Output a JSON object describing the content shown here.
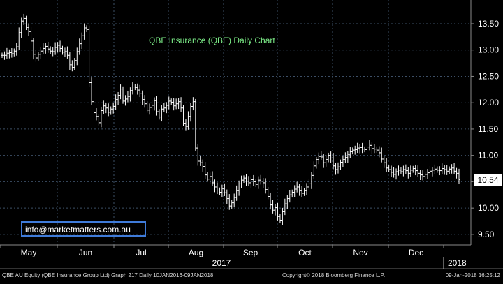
{
  "chart_data": {
    "type": "ohlc",
    "title": "QBE Insurance (QBE) Daily Chart",
    "xlabel": "",
    "ylabel": "",
    "ylim": [
      9.3,
      13.95
    ],
    "y_ticks": [
      "9.50",
      "10.00",
      "10.50",
      "11.00",
      "11.50",
      "12.00",
      "12.50",
      "13.00",
      "13.50"
    ],
    "month_labels": [
      "May",
      "Jun",
      "Jul",
      "Aug",
      "Sep",
      "Oct",
      "Nov",
      "Dec"
    ],
    "year_labels": [
      "2017",
      "2018"
    ],
    "last_price": "10.54",
    "series": [
      {
        "values": [
          12.9,
          12.9,
          12.94,
          12.95,
          12.93,
          12.98,
          13.06,
          13.33,
          13.55,
          13.6,
          13.43,
          13.35,
          13.17,
          12.92,
          12.85,
          12.92,
          12.98,
          13.03,
          13.07,
          13.02,
          12.98,
          12.97,
          13.05,
          13.09,
          13.03,
          12.96,
          12.97,
          12.9,
          12.72,
          12.67,
          12.8,
          12.97,
          13.12,
          13.27,
          13.42,
          13.39,
          12.38,
          12.02,
          11.81,
          11.74,
          11.62,
          11.85,
          11.94,
          11.9,
          11.82,
          11.88,
          11.93,
          12.06,
          12.14,
          12.26,
          12.03,
          12.07,
          12.12,
          12.23,
          12.3,
          12.29,
          12.24,
          12.17,
          12.06,
          11.98,
          11.86,
          11.91,
          11.95,
          12.04,
          11.83,
          11.73,
          11.88,
          11.9,
          11.95,
          12.03,
          12.01,
          11.94,
          11.98,
          12.02,
          11.9,
          11.61,
          11.55,
          11.74,
          11.93,
          12.02,
          11.14,
          10.89,
          10.86,
          10.79,
          10.63,
          10.55,
          10.6,
          10.48,
          10.4,
          10.34,
          10.3,
          10.37,
          10.29,
          10.18,
          10.04,
          10.1,
          10.2,
          10.33,
          10.46,
          10.53,
          10.57,
          10.51,
          10.48,
          10.54,
          10.5,
          10.45,
          10.53,
          10.51,
          10.48,
          10.35,
          10.22,
          10.06,
          9.96,
          10.01,
          9.84,
          9.77,
          9.93,
          10.08,
          10.18,
          10.25,
          10.3,
          10.36,
          10.4,
          10.33,
          10.28,
          10.33,
          10.4,
          10.46,
          10.62,
          10.8,
          10.92,
          10.98,
          10.97,
          10.86,
          10.92,
          11.0,
          10.95,
          10.8,
          10.73,
          10.78,
          10.87,
          10.92,
          10.96,
          11.02,
          11.07,
          11.1,
          11.11,
          11.14,
          11.15,
          11.12,
          11.11,
          11.16,
          11.19,
          11.13,
          11.12,
          11.1,
          11.05,
          10.93,
          10.86,
          10.76,
          10.73,
          10.68,
          10.64,
          10.69,
          10.72,
          10.69,
          10.73,
          10.71,
          10.66,
          10.72,
          10.75,
          10.71,
          10.66,
          10.63,
          10.6,
          10.64,
          10.67,
          10.7,
          10.72,
          10.74,
          10.72,
          10.71,
          10.75,
          10.73,
          10.7,
          10.74,
          10.76,
          10.7,
          10.66,
          10.54
        ]
      }
    ],
    "grid": true,
    "legend": "none"
  },
  "annotations": {
    "email": "info@marketmatters.com.au"
  },
  "footer": {
    "left": "QBE AU Equity (QBE Insurance Group Ltd) Graph 217  Daily 10JAN2016-09JAN2018",
    "center": "Copyright© 2018 Bloomberg Finance L.P.",
    "right": "09-Jan-2018 16:25:12"
  },
  "colors": {
    "background": "#000000",
    "price_bars": "#ffffff",
    "grid": "#3d4f66",
    "title_text": "#7ef08a",
    "axis_text": "#ffffff",
    "email_border": "#3f7bd9",
    "footer_text": "#d8d8d8"
  }
}
